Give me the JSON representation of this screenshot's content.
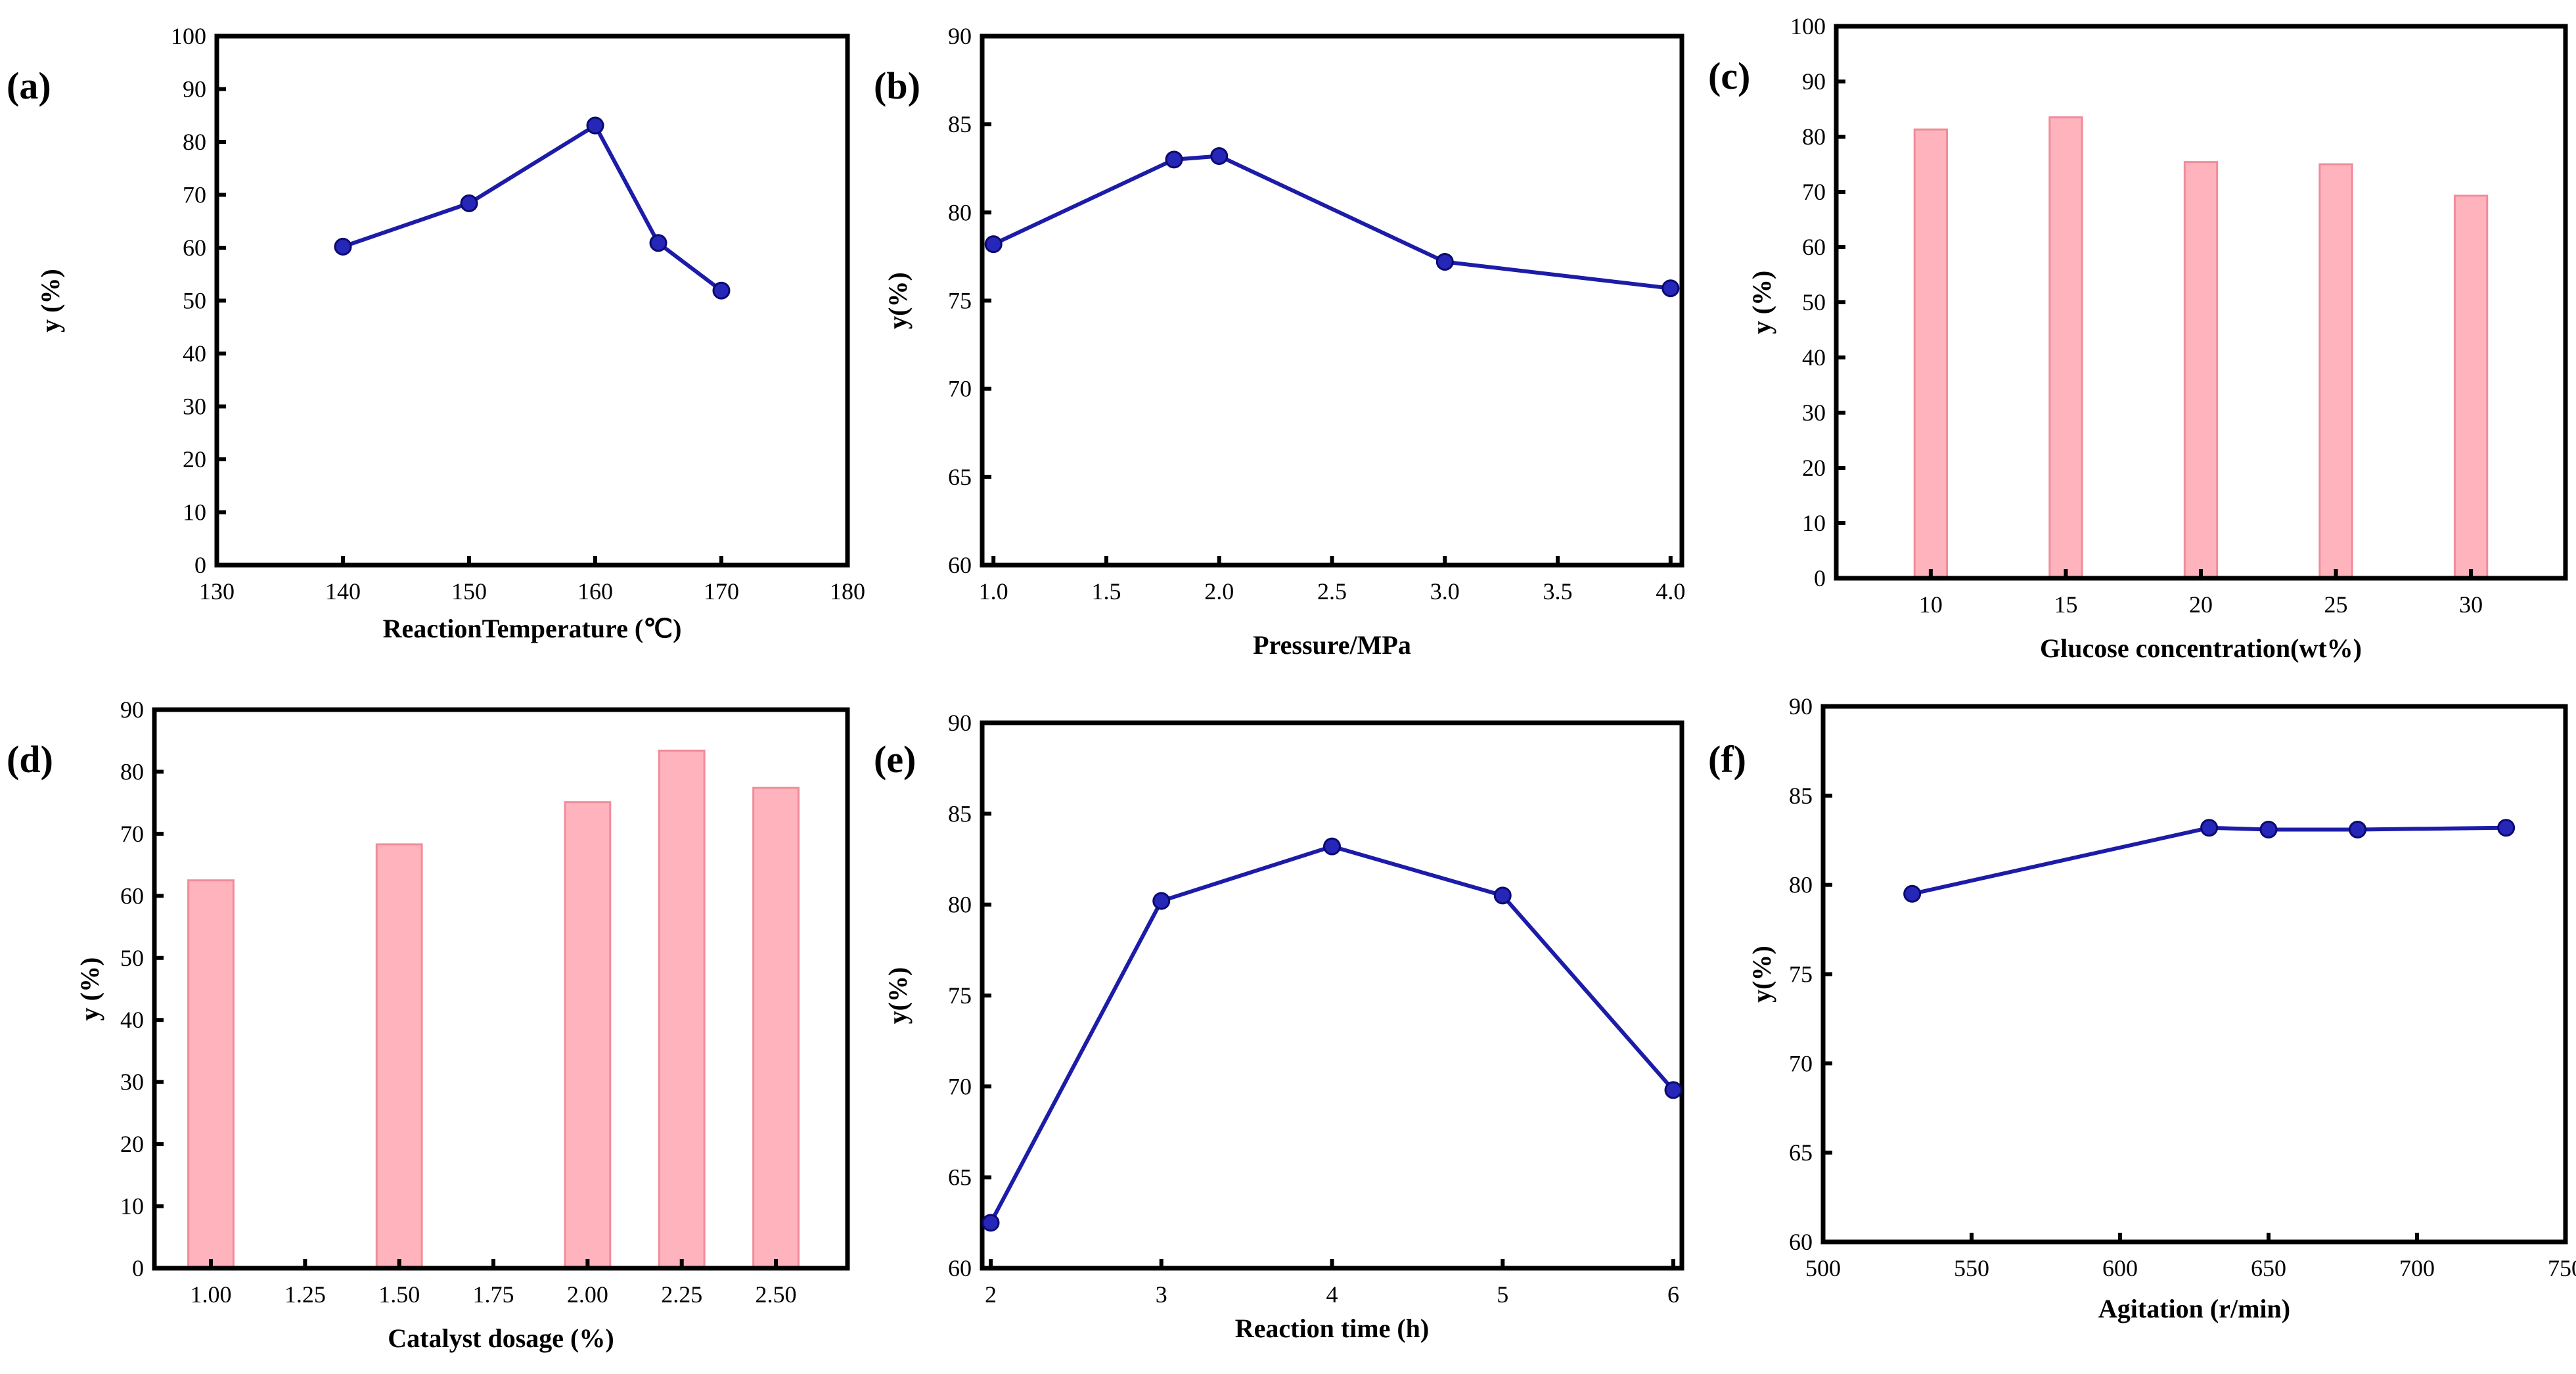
{
  "chart_data": [
    {
      "id": "a",
      "panel_label": "(a)",
      "type": "line",
      "xlabel": "ReactionTemperature (℃)",
      "ylabel": "y (%)",
      "xlim": [
        130,
        180
      ],
      "ylim": [
        0,
        100
      ],
      "xticks": [
        130,
        140,
        150,
        160,
        170,
        180
      ],
      "xtick_labels": [
        "130",
        "140",
        "150",
        "160",
        "170",
        "180"
      ],
      "yticks": [
        0,
        10,
        20,
        30,
        40,
        50,
        60,
        70,
        80,
        90,
        100
      ],
      "ytick_labels": [
        "0",
        "10",
        "20",
        "30",
        "40",
        "50",
        "60",
        "70",
        "80",
        "90",
        "100"
      ],
      "x": [
        140,
        150,
        160,
        165,
        170
      ],
      "values": [
        60.2,
        68.4,
        83.1,
        60.9,
        51.9
      ]
    },
    {
      "id": "b",
      "panel_label": "(b)",
      "type": "line",
      "xlabel": "Pressure/MPa",
      "ylabel": "y(%)",
      "xlim": [
        0.95,
        4.05
      ],
      "ylim": [
        60,
        90
      ],
      "xticks": [
        1.0,
        1.5,
        2.0,
        2.5,
        3.0,
        3.5,
        4.0
      ],
      "xtick_labels": [
        "1.0",
        "1.5",
        "2.0",
        "2.5",
        "3.0",
        "3.5",
        "4.0"
      ],
      "yticks": [
        60,
        65,
        70,
        75,
        80,
        85,
        90
      ],
      "ytick_labels": [
        "60",
        "65",
        "70",
        "75",
        "80",
        "85",
        "90"
      ],
      "x": [
        1.0,
        1.8,
        2.0,
        3.0,
        4.0
      ],
      "values": [
        78.2,
        83.0,
        83.2,
        77.2,
        75.7
      ]
    },
    {
      "id": "c",
      "panel_label": "(c)",
      "type": "bar",
      "xlabel": "Glucose concentration(wt%)",
      "ylabel": "y (%)",
      "xlim": [
        6.5,
        33.5
      ],
      "ylim": [
        0,
        100
      ],
      "xticks": [
        10,
        15,
        20,
        25,
        30
      ],
      "xtick_labels": [
        "10",
        "15",
        "20",
        "25",
        "30"
      ],
      "yticks": [
        0,
        10,
        20,
        30,
        40,
        50,
        60,
        70,
        80,
        90,
        100
      ],
      "ytick_labels": [
        "0",
        "10",
        "20",
        "30",
        "40",
        "50",
        "60",
        "70",
        "80",
        "90",
        "100"
      ],
      "x": [
        10,
        15,
        20,
        25,
        30
      ],
      "values": [
        81.3,
        83.5,
        75.4,
        75.0,
        69.3
      ],
      "bar_width": 1.2
    },
    {
      "id": "d",
      "panel_label": "(d)",
      "type": "bar",
      "xlabel": "Catalyst dosage (%)",
      "ylabel": "y (%)",
      "xlim": [
        0.85,
        2.69
      ],
      "ylim": [
        0,
        90
      ],
      "xticks": [
        1.0,
        1.25,
        1.5,
        1.75,
        2.0,
        2.25,
        2.5
      ],
      "xtick_labels": [
        "1.00",
        "1.25",
        "1.50",
        "1.75",
        "2.00",
        "2.25",
        "2.50"
      ],
      "yticks": [
        0,
        10,
        20,
        30,
        40,
        50,
        60,
        70,
        80,
        90
      ],
      "ytick_labels": [
        "0",
        "10",
        "20",
        "30",
        "40",
        "50",
        "60",
        "70",
        "80",
        "90"
      ],
      "x": [
        1.0,
        1.5,
        2.0,
        2.25,
        2.5
      ],
      "values": [
        62.5,
        68.3,
        75.1,
        83.4,
        77.4
      ],
      "bar_width": 0.12
    },
    {
      "id": "e",
      "panel_label": "(e)",
      "type": "line",
      "xlabel": "Reaction time (h)",
      "ylabel": "y(%)",
      "xlim": [
        1.95,
        6.05
      ],
      "ylim": [
        60,
        90
      ],
      "xticks": [
        2,
        3,
        4,
        5,
        6
      ],
      "xtick_labels": [
        "2",
        "3",
        "4",
        "5",
        "6"
      ],
      "yticks": [
        60,
        65,
        70,
        75,
        80,
        85,
        90
      ],
      "ytick_labels": [
        "60",
        "65",
        "70",
        "75",
        "80",
        "85",
        "90"
      ],
      "x": [
        2,
        3,
        4,
        5,
        6
      ],
      "values": [
        62.5,
        80.2,
        83.2,
        80.5,
        69.8
      ]
    },
    {
      "id": "f",
      "panel_label": "(f)",
      "type": "line",
      "xlabel": "Agitation (r/min)",
      "ylabel": "y(%)",
      "xlim": [
        500,
        750
      ],
      "ylim": [
        60,
        90
      ],
      "xticks": [
        500,
        550,
        600,
        650,
        700,
        750
      ],
      "xtick_labels": [
        "500",
        "550",
        "600",
        "650",
        "700",
        "750"
      ],
      "yticks": [
        60,
        65,
        70,
        75,
        80,
        85,
        90
      ],
      "ytick_labels": [
        "60",
        "65",
        "70",
        "75",
        "80",
        "85",
        "90"
      ],
      "x": [
        530,
        630,
        650,
        680,
        730
      ],
      "values": [
        79.5,
        83.2,
        83.1,
        83.1,
        83.2
      ]
    }
  ]
}
